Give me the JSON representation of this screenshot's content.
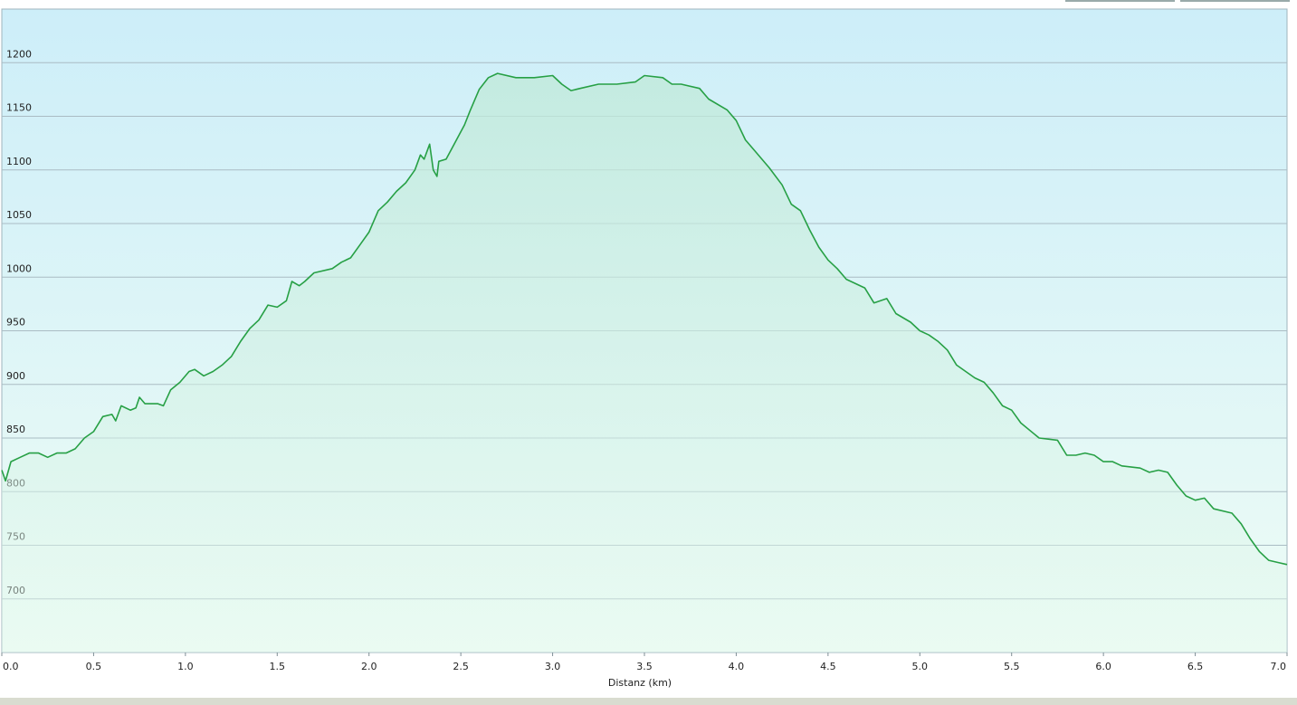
{
  "chart_data": {
    "type": "area",
    "x_label": "Distanz  (km)",
    "x": [
      0.0,
      0.02,
      0.05,
      0.1,
      0.15,
      0.2,
      0.25,
      0.3,
      0.35,
      0.4,
      0.45,
      0.5,
      0.55,
      0.6,
      0.62,
      0.65,
      0.7,
      0.73,
      0.75,
      0.78,
      0.85,
      0.88,
      0.92,
      0.97,
      1.02,
      1.05,
      1.1,
      1.15,
      1.2,
      1.25,
      1.3,
      1.35,
      1.4,
      1.45,
      1.5,
      1.55,
      1.58,
      1.62,
      1.65,
      1.7,
      1.8,
      1.85,
      1.9,
      1.95,
      2.0,
      2.05,
      2.1,
      2.15,
      2.2,
      2.25,
      2.28,
      2.3,
      2.33,
      2.35,
      2.37,
      2.38,
      2.42,
      2.47,
      2.52,
      2.55,
      2.6,
      2.65,
      2.7,
      2.8,
      2.9,
      3.0,
      3.05,
      3.1,
      3.15,
      3.25,
      3.35,
      3.45,
      3.5,
      3.6,
      3.65,
      3.7,
      3.8,
      3.85,
      3.95,
      4.0,
      4.05,
      4.1,
      4.18,
      4.25,
      4.3,
      4.35,
      4.4,
      4.45,
      4.5,
      4.55,
      4.6,
      4.7,
      4.75,
      4.82,
      4.87,
      4.95,
      5.0,
      5.05,
      5.1,
      5.15,
      5.2,
      5.3,
      5.35,
      5.4,
      5.45,
      5.5,
      5.55,
      5.65,
      5.75,
      5.8,
      5.85,
      5.9,
      5.95,
      6.0,
      6.05,
      6.1,
      6.2,
      6.25,
      6.3,
      6.35,
      6.4,
      6.45,
      6.5,
      6.55,
      6.6,
      6.7,
      6.75,
      6.8,
      6.85,
      6.9,
      6.95,
      7.0
    ],
    "series": [
      {
        "color": "#27a045",
        "values": [
          820,
          810,
          828,
          832,
          836,
          836,
          832,
          836,
          836,
          840,
          850,
          856,
          870,
          872,
          866,
          880,
          876,
          878,
          888,
          882,
          882,
          880,
          895,
          902,
          912,
          914,
          908,
          912,
          918,
          926,
          940,
          952,
          960,
          974,
          972,
          978,
          996,
          992,
          996,
          1004,
          1008,
          1014,
          1018,
          1030,
          1042,
          1062,
          1070,
          1080,
          1088,
          1100,
          1114,
          1110,
          1124,
          1100,
          1094,
          1108,
          1110,
          1126,
          1142,
          1155,
          1175,
          1186,
          1190,
          1186,
          1186,
          1188,
          1180,
          1174,
          1176,
          1180,
          1180,
          1182,
          1188,
          1186,
          1180,
          1180,
          1176,
          1166,
          1156,
          1146,
          1128,
          1118,
          1102,
          1086,
          1068,
          1062,
          1044,
          1028,
          1016,
          1008,
          998,
          990,
          976,
          980,
          966,
          958,
          950,
          946,
          940,
          932,
          918,
          906,
          902,
          892,
          880,
          876,
          864,
          850,
          848,
          834,
          834,
          836,
          834,
          828,
          828,
          824,
          822,
          818,
          820,
          818,
          806,
          796,
          792,
          794,
          784,
          780,
          770,
          756,
          744,
          736,
          734,
          732
        ]
      }
    ],
    "xlim": [
      0,
      7
    ],
    "xticks": [
      {
        "value": 0,
        "label": "0.0"
      },
      0.5,
      {
        "value": 1,
        "label": "1.0"
      },
      1.5,
      {
        "value": 2,
        "label": "2.0"
      },
      2.5,
      {
        "value": 3,
        "label": "3.0"
      },
      3.5,
      {
        "value": 4,
        "label": "4.0"
      },
      4.5,
      {
        "value": 5,
        "label": "5.0"
      },
      5.5,
      {
        "value": 6,
        "label": "6.0"
      },
      6.5,
      {
        "value": 7,
        "label": "7.0"
      }
    ],
    "ylim": [
      650,
      1250
    ],
    "yticks": [
      700,
      750,
      800,
      850,
      900,
      950,
      1000,
      1050,
      1100,
      1150,
      1200
    ],
    "grid": true
  }
}
